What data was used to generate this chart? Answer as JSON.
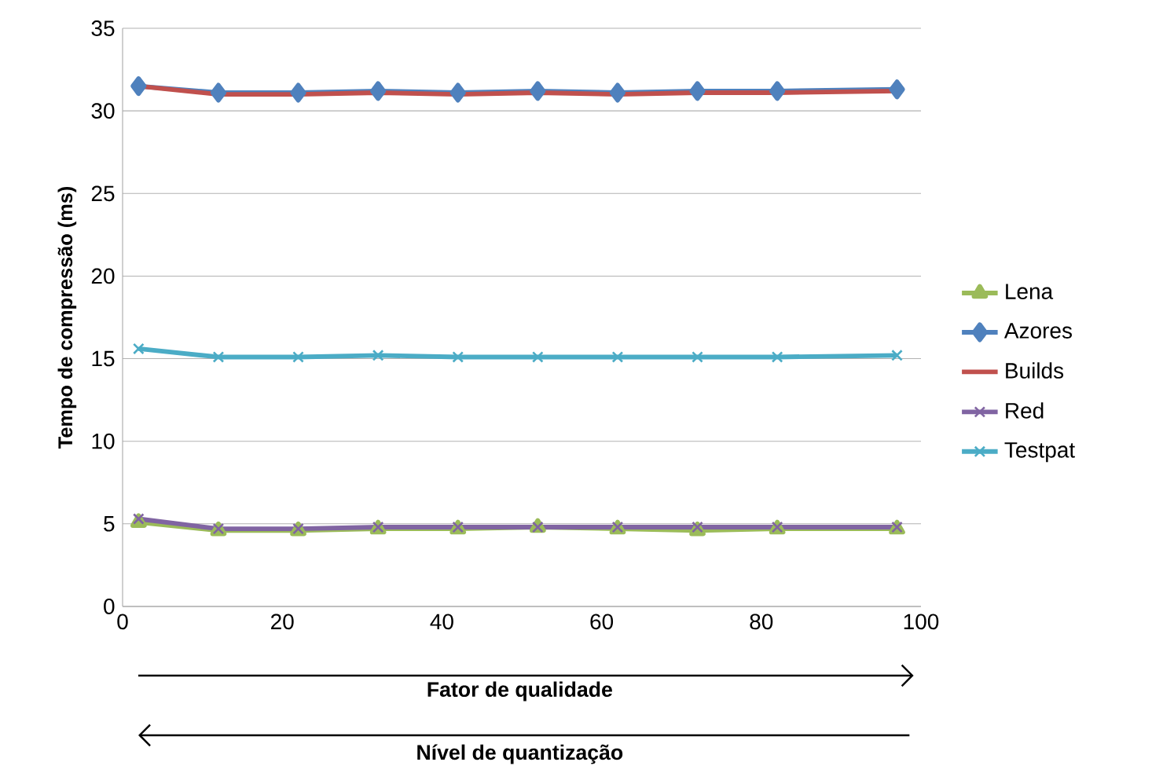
{
  "chart_data": {
    "type": "line",
    "xlabel": "Fator de qualidade",
    "ylabel": "Tempo de compressão (ms)",
    "annotations": [
      "Nível de quantização"
    ],
    "x": [
      2,
      12,
      22,
      32,
      42,
      52,
      62,
      72,
      82,
      97
    ],
    "series": [
      {
        "name": "Lena",
        "color": "#9bbb59",
        "marker": "triangle",
        "values": [
          5.1,
          4.6,
          4.6,
          4.7,
          4.7,
          4.8,
          4.7,
          4.6,
          4.7,
          4.7
        ]
      },
      {
        "name": "Azores",
        "color": "#4f81bd",
        "marker": "diamond",
        "values": [
          31.5,
          31.1,
          31.1,
          31.2,
          31.1,
          31.2,
          31.1,
          31.2,
          31.2,
          31.3
        ]
      },
      {
        "name": "Builds",
        "color": "#c0504d",
        "marker": "none",
        "values": [
          31.5,
          31.0,
          31.0,
          31.1,
          31.0,
          31.1,
          31.0,
          31.1,
          31.1,
          31.2
        ]
      },
      {
        "name": "Red",
        "color": "#8064a2",
        "marker": "cross",
        "values": [
          5.3,
          4.7,
          4.7,
          4.8,
          4.8,
          4.8,
          4.8,
          4.8,
          4.8,
          4.8
        ]
      },
      {
        "name": "Testpat",
        "color": "#4bacc6",
        "marker": "cross",
        "values": [
          15.6,
          15.1,
          15.1,
          15.2,
          15.1,
          15.1,
          15.1,
          15.1,
          15.1,
          15.2
        ]
      }
    ],
    "xlim": [
      0,
      100
    ],
    "xticks": [
      0,
      20,
      40,
      60,
      80,
      100
    ],
    "ylim": [
      0,
      35
    ],
    "yticks": [
      0,
      5,
      10,
      15,
      20,
      25,
      30,
      35
    ],
    "grid": "y",
    "legend": "right",
    "line_style": "solid"
  }
}
